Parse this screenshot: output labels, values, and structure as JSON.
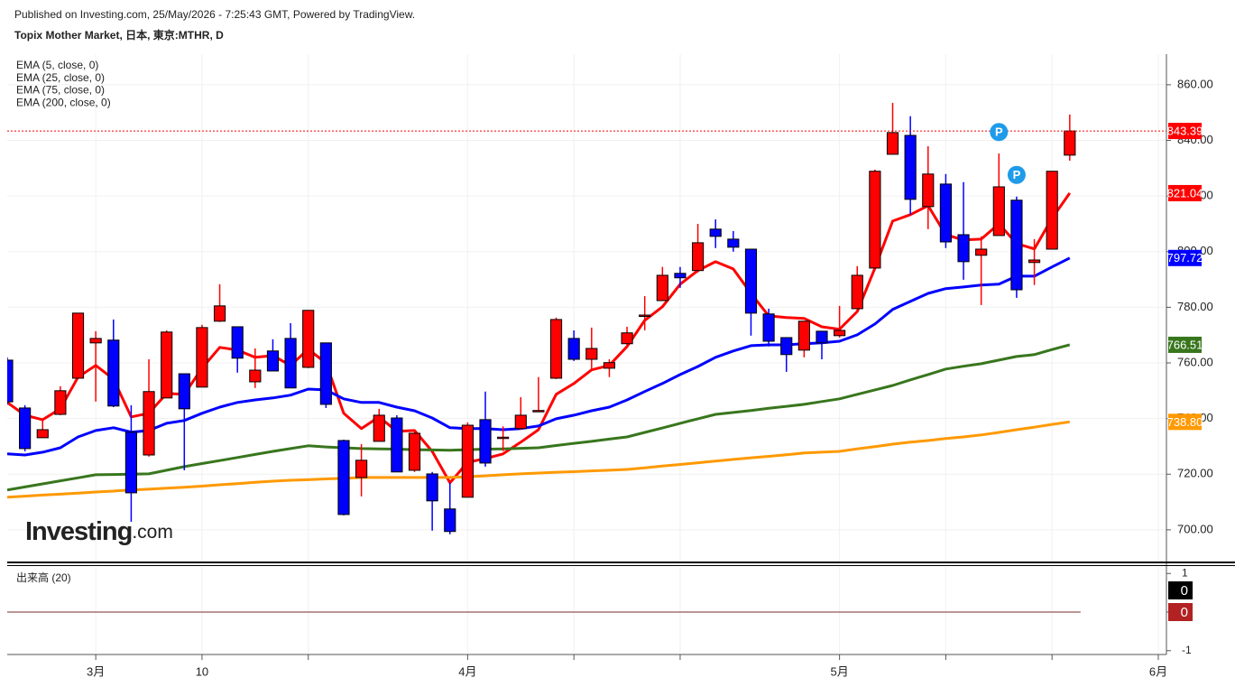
{
  "header": {
    "published": "Published on Investing.com, 25/May/2026 - 7:25:43 GMT, Powered by TradingView.",
    "title": "Topix Mother Market, 日本, 東京:MTHR, D"
  },
  "chart_data": {
    "type": "candlestick",
    "watermark": [
      "Investing",
      ".com"
    ],
    "up_color": "#ff0000",
    "down_color": "#0000ff",
    "open": [
      761,
      743.8,
      733.1,
      741.5,
      754.5,
      767.2,
      768.2,
      735.1,
      726.9,
      747.4,
      756.1,
      751.3,
      775,
      773,
      753.2,
      764.3,
      768.8,
      758.4,
      767.2,
      732.1,
      718.8,
      731.8,
      740.2,
      721.4,
      720.1,
      707.5,
      711.7,
      739.6,
      733,
      736.4,
      742.7,
      754.5,
      768.8,
      761.3,
      758.1,
      766.9,
      776.9,
      782.4,
      792.2,
      793.2,
      808.1,
      804.5,
      800.9,
      777.6,
      769.1,
      764.6,
      771.4,
      769.8,
      779.5,
      794.1,
      835,
      841.8,
      816.2,
      824.3,
      806.1,
      798.7,
      805.8,
      818.5,
      796.1,
      800.9,
      834.7
    ],
    "high": [
      762,
      744.8,
      740,
      751.6,
      778,
      771.4,
      775.6,
      744.8,
      761.3,
      771.7,
      756.1,
      773.7,
      788.3,
      773,
      765.2,
      768.5,
      774.3,
      778.9,
      767.2,
      732.4,
      730.8,
      743.5,
      741.2,
      736,
      720.8,
      716.9,
      738.6,
      749.7,
      737.2,
      747.7,
      754.9,
      776.3,
      771.7,
      772.7,
      761.3,
      773,
      784,
      794.5,
      794.5,
      810,
      811.6,
      807.4,
      800.9,
      779.5,
      769.1,
      775,
      771.4,
      780.5,
      794.8,
      829.5,
      853.5,
      848.7,
      837.9,
      827.9,
      825,
      805.5,
      835.3,
      819.8,
      804.5,
      828.9,
      849.3
    ],
    "low": [
      745,
      728.2,
      733.1,
      741.2,
      754.2,
      746.1,
      744.1,
      702.9,
      726.3,
      747.4,
      721.4,
      751.3,
      774.7,
      756.5,
      751,
      757.1,
      751,
      758.1,
      743.8,
      705.2,
      712,
      731.8,
      720.8,
      720.8,
      699.7,
      698.4,
      711.7,
      722.7,
      728.3,
      736,
      742.6,
      754.2,
      760.7,
      757.4,
      754.9,
      766.5,
      771.7,
      782.4,
      787,
      792.5,
      801.3,
      800,
      769.8,
      765.9,
      756.8,
      762,
      761.3,
      769.1,
      779.5,
      794.1,
      835,
      813.3,
      808.1,
      801.3,
      789.9,
      780.8,
      805.8,
      783.4,
      788,
      800.9,
      832.7
    ],
    "close": [
      746,
      729.2,
      736,
      750,
      777.9,
      768.8,
      744.5,
      713.3,
      749.7,
      771.1,
      743.5,
      772.7,
      780.5,
      761.7,
      757.4,
      757.1,
      751,
      778.9,
      745.1,
      705.5,
      725,
      741.2,
      720.8,
      734.7,
      710.4,
      699.4,
      737.6,
      724,
      733.3,
      741.2,
      742.9,
      775.6,
      761.3,
      765.2,
      760.1,
      770.8,
      777.2,
      791.5,
      790.6,
      803.2,
      805.5,
      801.6,
      777.9,
      767.8,
      763,
      775,
      767.2,
      771.7,
      791.5,
      828.9,
      842.8,
      818.8,
      827.9,
      803.5,
      796.4,
      800.9,
      823.3,
      786.3,
      797,
      828.9,
      843.39
    ],
    "series": [
      {
        "name": "EMA (5, close, 0)",
        "color": "#ff0000",
        "values": [
          745.8,
          741.2,
          739.6,
          743.5,
          754.9,
          759.1,
          754.2,
          740.6,
          741.9,
          749,
          748.7,
          758.1,
          765.6,
          764.6,
          762,
          762.6,
          759.1,
          764.9,
          760,
          741.9,
          736.4,
          740.6,
          735.4,
          735.7,
          728.2,
          716.9,
          724.3,
          725.6,
          727.3,
          731.5,
          736,
          748.7,
          752.6,
          757.5,
          759.1,
          765.9,
          775.3,
          780.2,
          788.3,
          793.2,
          796.4,
          793.8,
          785,
          776.9,
          776.3,
          776,
          773,
          772.1,
          778.5,
          794.1,
          811,
          813.3,
          816.5,
          806.1,
          804.2,
          804.5,
          810,
          802.9,
          801,
          812,
          821.04
        ]
      },
      {
        "name": "EMA (25, close, 0)",
        "color": "#0000ff",
        "values": [
          727.3,
          726.9,
          727.9,
          729.5,
          733.4,
          735.7,
          736.7,
          735.1,
          735.7,
          738.3,
          739.3,
          741.9,
          744.1,
          745.8,
          746.7,
          747.4,
          748.4,
          750.6,
          750.3,
          747.1,
          745.8,
          745.8,
          744.1,
          742.8,
          740.2,
          736.7,
          736.4,
          736.4,
          736,
          736.4,
          737.3,
          739.9,
          741.2,
          742.8,
          744.1,
          746.7,
          749.7,
          752.6,
          755.8,
          758.7,
          762,
          764.3,
          766.2,
          766.5,
          766.5,
          766.9,
          767.2,
          767.8,
          770.1,
          774,
          779.2,
          782.1,
          785,
          786.7,
          787.3,
          788,
          788.3,
          791.2,
          791.2,
          794.5,
          797.72
        ]
      },
      {
        "name": "EMA (75, close, 0)",
        "color": "#38761d",
        "values": [
          714.3,
          715.4,
          716.5,
          717.6,
          718.7,
          719.8,
          719.9,
          720,
          720.1,
          721.4,
          722.7,
          723.8,
          724.9,
          726,
          727.1,
          728.2,
          729.2,
          730.2,
          729.8,
          729.5,
          729.2,
          729.1,
          729,
          728.8,
          728.7,
          728.6,
          728.8,
          729,
          729.1,
          729.3,
          729.5,
          730.3,
          731.1,
          731.8,
          732.6,
          733.4,
          735,
          736.6,
          738.3,
          739.9,
          741.5,
          742.2,
          742.9,
          743.7,
          744.4,
          745.1,
          746.1,
          747.1,
          748.7,
          750.3,
          751.9,
          753.9,
          755.8,
          757.8,
          758.8,
          759.7,
          761,
          762.3,
          763,
          764.8,
          766.51
        ]
      },
      {
        "name": "EMA (200, close, 0)",
        "color": "#ff9900",
        "last_label": "738.80",
        "values": [
          711.7,
          712.1,
          712.5,
          712.8,
          713.2,
          713.6,
          713.9,
          714.3,
          714.6,
          715,
          715.3,
          715.7,
          716.2,
          716.6,
          717.1,
          717.5,
          717.8,
          718,
          718.3,
          718.5,
          718.8,
          718.8,
          718.8,
          718.8,
          718.8,
          718.8,
          719.1,
          719.4,
          719.8,
          720.1,
          720.4,
          720.7,
          720.9,
          721.2,
          721.4,
          721.7,
          722.3,
          722.9,
          723.5,
          724.1,
          724.7,
          725.3,
          725.9,
          726.4,
          727,
          727.6,
          727.9,
          728.2,
          729.1,
          729.9,
          730.8,
          731.5,
          732.1,
          732.8,
          733.4,
          734.1,
          735,
          736,
          736.9,
          737.9,
          738.8
        ]
      }
    ],
    "markers": [
      {
        "label": "P",
        "x": 56,
        "y": 843
      },
      {
        "label": "P",
        "x": 57,
        "y": 827.6
      }
    ],
    "xlim": [
      0,
      65.46
    ],
    "xticks": [
      {
        "value": 5,
        "label": "3月"
      },
      {
        "value": 11,
        "label": "10"
      },
      {
        "value": 17,
        "label": null
      },
      {
        "value": 26,
        "label": "4月"
      },
      {
        "value": 32,
        "label": null
      },
      {
        "value": 38,
        "label": null
      },
      {
        "value": 47,
        "label": "5月"
      },
      {
        "value": 53,
        "label": null
      },
      {
        "value": 59,
        "label": null
      },
      {
        "value": 65,
        "label": "6月"
      }
    ],
    "ylim": [
      688.6,
      871
    ],
    "yticks": [
      {
        "value": 700,
        "label": "700.00"
      },
      {
        "value": 720,
        "label": "720.00"
      },
      {
        "value": 740,
        "label": "740.00"
      },
      {
        "value": 760,
        "label": "760.00"
      },
      {
        "value": 780,
        "label": "780.00"
      },
      {
        "value": 800,
        "label": "800.00"
      },
      {
        "value": 820,
        "label": "820.00"
      },
      {
        "value": 840,
        "label": "840.00"
      },
      {
        "value": 860,
        "label": "860.00"
      }
    ],
    "grid": true,
    "volume": {
      "label": "出来高 (20)",
      "ylim": [
        -1.1,
        1.17
      ],
      "yticks": [
        1,
        0,
        -1
      ],
      "series": [
        {
          "color": "#000000",
          "values": [
            0,
            0,
            0,
            0,
            0,
            0,
            0,
            0,
            0,
            0,
            0,
            0,
            0,
            0,
            0,
            0,
            0,
            0,
            0,
            0,
            0,
            0,
            0,
            0,
            0,
            0,
            0,
            0,
            0,
            0,
            0,
            0,
            0,
            0,
            0,
            0,
            0,
            0,
            0,
            0,
            0,
            0,
            0,
            0,
            0,
            0,
            0,
            0,
            0,
            0,
            0,
            0,
            0,
            0,
            0,
            0,
            0,
            0,
            0,
            0,
            0
          ]
        },
        {
          "color": "#b22222",
          "values": [
            0,
            0,
            0,
            0,
            0,
            0,
            0,
            0,
            0,
            0,
            0,
            0,
            0,
            0,
            0,
            0,
            0,
            0,
            0,
            0,
            0,
            0,
            0,
            0,
            0,
            0,
            0,
            0,
            0,
            0,
            0,
            0,
            0,
            0,
            0,
            0,
            0,
            0,
            0,
            0,
            0,
            0,
            0,
            0,
            0,
            0,
            0,
            0,
            0,
            0,
            0,
            0,
            0,
            0,
            0,
            0,
            0,
            0,
            0,
            0,
            0
          ]
        }
      ]
    }
  }
}
